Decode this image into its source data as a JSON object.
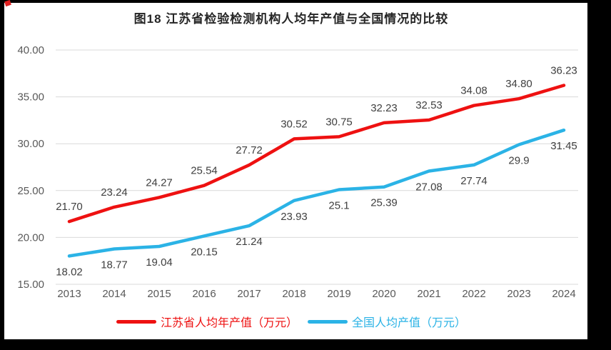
{
  "chart_data": {
    "type": "line",
    "title": "图18  江苏省检验检测机构人均年产值与全国情况的比较",
    "categories": [
      "2013",
      "2014",
      "2015",
      "2016",
      "2017",
      "2018",
      "2019",
      "2020",
      "2021",
      "2022",
      "2023",
      "2024"
    ],
    "series": [
      {
        "name": "江苏省人均年产值（万元）",
        "color": "#ee1111",
        "values": [
          21.7,
          23.24,
          24.27,
          25.54,
          27.72,
          30.52,
          30.75,
          32.23,
          32.53,
          34.08,
          34.8,
          36.23
        ],
        "labels": [
          "21.70",
          "23.24",
          "24.27",
          "25.54",
          "27.72",
          "30.52",
          "30.75",
          "32.23",
          "32.53",
          "34.08",
          "34.80",
          "36.23"
        ]
      },
      {
        "name": "全国人均产值（万元）",
        "color": "#2bb3e6",
        "values": [
          18.02,
          18.77,
          19.04,
          20.15,
          21.24,
          23.93,
          25.1,
          25.39,
          27.08,
          27.74,
          29.9,
          31.45
        ],
        "labels": [
          "18.02",
          "18.77",
          "19.04",
          "20.15",
          "21.24",
          "23.93",
          "25.1",
          "25.39",
          "27.08",
          "27.74",
          "29.9",
          "31.45"
        ]
      }
    ],
    "ylim": [
      15,
      40
    ],
    "ytick_step": 5,
    "yticks": [
      "40.00",
      "35.00",
      "30.00",
      "25.00",
      "20.00",
      "15.00"
    ],
    "xlabel": "",
    "ylabel": "",
    "grid": true,
    "legend_position": "bottom",
    "colors": {
      "grid": "#d9d9d9",
      "tick_text": "#595959",
      "data_label_text": "#404040",
      "title_text": "#262626",
      "background": "#ffffff",
      "frame": "#000000",
      "corner_mark": "#e02020"
    }
  }
}
